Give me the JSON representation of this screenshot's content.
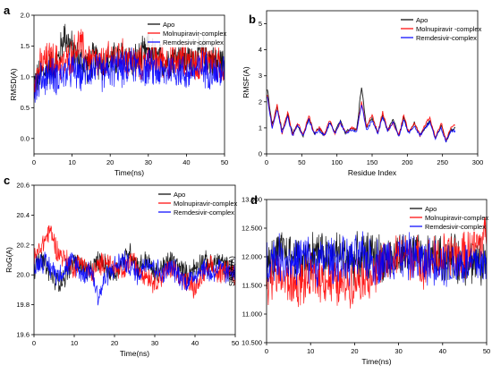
{
  "figure": {
    "colors": {
      "Apo": "#000000",
      "Molnupiravir-complex": "#ff0000",
      "Remdesivir-complex": "#0000ff"
    }
  },
  "chart_data": [
    {
      "panel": "a",
      "type": "line",
      "ylabel": "RMSD(A)",
      "xlabel": "Time(ns)",
      "xlim": [
        0,
        50
      ],
      "ylim": [
        -0.25,
        2.0
      ],
      "xticks": [
        "0",
        "10",
        "20",
        "30",
        "40",
        "50"
      ],
      "yticks": [
        "0.0",
        "0.5",
        "1.0",
        "1.5",
        "2.0"
      ],
      "legend": "top-right",
      "series": [
        {
          "name": "Apo",
          "color": "#000000",
          "x": [
            0,
            2,
            4,
            6,
            8,
            10,
            12,
            14,
            16,
            18,
            20,
            22,
            24,
            26,
            28,
            30,
            32,
            34,
            36,
            38,
            40,
            42,
            44,
            46,
            48,
            50
          ],
          "y": [
            0.9,
            1.05,
            1.15,
            1.2,
            1.7,
            1.45,
            1.25,
            1.2,
            1.3,
            1.2,
            1.25,
            1.3,
            1.35,
            1.25,
            1.3,
            1.45,
            1.3,
            1.25,
            1.3,
            1.35,
            1.25,
            1.3,
            1.4,
            1.3,
            1.25,
            1.2
          ]
        },
        {
          "name": "Molnupiravir-complex",
          "color": "#ff0000",
          "x": [
            0,
            2,
            4,
            6,
            8,
            10,
            12,
            14,
            16,
            18,
            20,
            22,
            24,
            26,
            28,
            30,
            32,
            34,
            36,
            38,
            40,
            42,
            44,
            46,
            48,
            50
          ],
          "y": [
            0.95,
            1.2,
            1.3,
            1.25,
            1.2,
            1.35,
            1.55,
            1.3,
            1.25,
            1.2,
            1.3,
            1.35,
            1.3,
            1.25,
            1.2,
            1.3,
            1.25,
            1.3,
            1.2,
            1.25,
            1.3,
            1.2,
            1.25,
            1.3,
            1.2,
            1.15
          ]
        },
        {
          "name": "Remdesivir-complex",
          "color": "#0000ff",
          "x": [
            0,
            2,
            4,
            6,
            8,
            10,
            12,
            14,
            16,
            18,
            20,
            22,
            24,
            26,
            28,
            30,
            32,
            34,
            36,
            38,
            40,
            42,
            44,
            46,
            48,
            50
          ],
          "y": [
            0.8,
            0.95,
            1.05,
            1.0,
            1.05,
            1.1,
            1.05,
            1.1,
            1.15,
            1.05,
            1.1,
            1.15,
            1.1,
            1.2,
            1.1,
            1.15,
            1.1,
            1.05,
            1.15,
            1.1,
            1.05,
            1.1,
            1.15,
            1.1,
            1.05,
            1.1
          ]
        }
      ]
    },
    {
      "panel": "b",
      "type": "line",
      "ylabel": "RMSF(A)",
      "xlabel": "Residue Index",
      "xlim": [
        0,
        300
      ],
      "ylim": [
        0,
        5.5
      ],
      "xticks": [
        "0",
        "50",
        "100",
        "150",
        "200",
        "250",
        "300"
      ],
      "yticks": [
        "0",
        "1",
        "2",
        "3",
        "4",
        "5"
      ],
      "legend": "top-right",
      "series": [
        {
          "name": "Apo",
          "color": "#000000",
          "x": [
            1,
            8,
            15,
            22,
            30,
            37,
            44,
            52,
            60,
            68,
            75,
            82,
            90,
            97,
            105,
            112,
            120,
            128,
            135,
            142,
            150,
            158,
            165,
            172,
            180,
            188,
            195,
            202,
            210,
            218,
            225,
            232,
            240,
            248,
            255,
            262,
            268
          ],
          "y": [
            2.5,
            1.1,
            1.8,
            0.9,
            1.5,
            0.8,
            1.1,
            0.7,
            1.4,
            0.8,
            1.0,
            0.7,
            1.2,
            0.8,
            1.3,
            0.8,
            1.0,
            0.9,
            2.6,
            1.0,
            1.4,
            0.8,
            1.5,
            0.9,
            1.3,
            0.7,
            1.4,
            0.8,
            1.2,
            0.7,
            1.0,
            1.3,
            0.6,
            1.1,
            0.5,
            0.9,
            1.0
          ]
        },
        {
          "name": "Molnupiravir -complex",
          "color": "#ff0000",
          "x": [
            1,
            8,
            15,
            22,
            30,
            37,
            44,
            52,
            60,
            68,
            75,
            82,
            90,
            97,
            105,
            112,
            120,
            128,
            135,
            142,
            150,
            158,
            165,
            172,
            180,
            188,
            195,
            202,
            210,
            218,
            225,
            232,
            240,
            248,
            255,
            262,
            268
          ],
          "y": [
            2.3,
            1.0,
            1.9,
            0.8,
            1.6,
            0.7,
            1.2,
            0.7,
            1.5,
            0.8,
            1.0,
            0.7,
            1.3,
            0.8,
            1.2,
            0.8,
            1.0,
            0.9,
            2.0,
            1.0,
            1.5,
            0.8,
            1.6,
            0.9,
            1.2,
            0.7,
            1.5,
            0.8,
            1.2,
            0.7,
            1.1,
            1.4,
            0.6,
            1.2,
            0.5,
            1.0,
            1.1
          ]
        },
        {
          "name": "Remdesivir-complex",
          "color": "#0000ff",
          "x": [
            1,
            8,
            15,
            22,
            30,
            37,
            44,
            52,
            60,
            68,
            75,
            82,
            90,
            97,
            105,
            112,
            120,
            128,
            135,
            142,
            150,
            158,
            165,
            172,
            180,
            188,
            195,
            202,
            210,
            218,
            225,
            232,
            240,
            248,
            255,
            262,
            268
          ],
          "y": [
            2.2,
            1.0,
            1.7,
            0.8,
            1.4,
            0.7,
            1.1,
            0.7,
            1.3,
            0.8,
            0.9,
            0.7,
            1.2,
            0.8,
            1.2,
            0.8,
            0.9,
            0.9,
            1.9,
            0.9,
            1.3,
            0.8,
            1.4,
            0.9,
            1.2,
            0.7,
            1.3,
            0.8,
            1.1,
            0.7,
            1.0,
            1.2,
            0.6,
            1.0,
            0.5,
            0.9,
            0.9
          ]
        }
      ]
    },
    {
      "panel": "c",
      "type": "line",
      "ylabel": "RoG(A)",
      "xlabel": "Time(ns)",
      "xlim": [
        0,
        50
      ],
      "ylim": [
        19.6,
        20.6
      ],
      "xticks": [
        "0",
        "10",
        "20",
        "30",
        "40",
        "50"
      ],
      "yticks": [
        "19.6",
        "19.8",
        "20.0",
        "20.2",
        "20.4",
        "20.6"
      ],
      "legend": "top-right",
      "series": [
        {
          "name": "Apo",
          "color": "#000000",
          "x": [
            0,
            2,
            4,
            6,
            8,
            10,
            12,
            14,
            16,
            18,
            20,
            22,
            24,
            26,
            28,
            30,
            32,
            34,
            36,
            38,
            40,
            42,
            44,
            46,
            48,
            50
          ],
          "y": [
            20.05,
            20.1,
            20.0,
            19.95,
            20.0,
            20.1,
            20.05,
            20.0,
            20.1,
            20.05,
            20.0,
            20.1,
            20.15,
            20.05,
            20.1,
            20.0,
            20.05,
            20.1,
            20.05,
            20.0,
            20.05,
            20.1,
            20.05,
            20.1,
            20.05,
            20.0
          ]
        },
        {
          "name": "Molnupiravir-complex",
          "color": "#ff0000",
          "x": [
            0,
            2,
            4,
            6,
            8,
            10,
            12,
            14,
            16,
            18,
            20,
            22,
            24,
            26,
            28,
            30,
            32,
            34,
            36,
            38,
            40,
            42,
            44,
            46,
            48,
            50
          ],
          "y": [
            20.1,
            20.2,
            20.3,
            20.15,
            20.1,
            20.05,
            20.1,
            20.0,
            20.05,
            20.1,
            20.05,
            20.0,
            20.1,
            20.05,
            20.0,
            19.95,
            20.0,
            20.05,
            20.0,
            19.95,
            19.9,
            20.0,
            20.05,
            20.0,
            20.05,
            20.0
          ]
        },
        {
          "name": "Remdesivir-complex",
          "color": "#0000ff",
          "x": [
            0,
            2,
            4,
            6,
            8,
            10,
            12,
            14,
            16,
            18,
            20,
            22,
            24,
            26,
            28,
            30,
            32,
            34,
            36,
            38,
            40,
            42,
            44,
            46,
            48,
            50
          ],
          "y": [
            20.05,
            20.1,
            20.05,
            20.0,
            20.05,
            20.1,
            20.0,
            20.05,
            19.85,
            20.0,
            20.05,
            20.1,
            20.05,
            20.0,
            20.1,
            20.05,
            20.0,
            20.05,
            20.0,
            19.95,
            20.0,
            20.05,
            20.0,
            20.05,
            20.0,
            20.05
          ]
        }
      ]
    },
    {
      "panel": "d",
      "type": "line",
      "ylabel": "SASA(A)",
      "xlabel": "Time(ns)",
      "xlim": [
        0,
        50
      ],
      "ylim": [
        10.5,
        13.0
      ],
      "xticks": [
        "0",
        "10",
        "20",
        "30",
        "40",
        "50"
      ],
      "yticks": [
        "10.500",
        "11.000",
        "11.500",
        "12.000",
        "12.500",
        "13.000"
      ],
      "legend": "top-right",
      "series": [
        {
          "name": "Apo",
          "color": "#000000",
          "x": [
            0,
            2,
            4,
            6,
            8,
            10,
            12,
            14,
            16,
            18,
            20,
            22,
            24,
            26,
            28,
            30,
            32,
            34,
            36,
            38,
            40,
            42,
            44,
            46,
            48,
            50
          ],
          "y": [
            11.8,
            12.0,
            12.1,
            12.0,
            11.95,
            12.05,
            12.1,
            12.0,
            12.05,
            12.0,
            11.95,
            12.0,
            12.05,
            12.0,
            11.95,
            12.0,
            12.05,
            12.0,
            11.9,
            12.0,
            11.95,
            12.0,
            11.9,
            11.95,
            11.9,
            11.85
          ]
        },
        {
          "name": "Molnupiravir-complex",
          "color": "#ff0000",
          "x": [
            0,
            2,
            4,
            6,
            8,
            10,
            12,
            14,
            16,
            18,
            20,
            22,
            24,
            26,
            28,
            30,
            32,
            34,
            36,
            38,
            40,
            42,
            44,
            46,
            48,
            50
          ],
          "y": [
            11.6,
            11.7,
            11.6,
            11.5,
            11.55,
            11.6,
            11.65,
            11.6,
            11.5,
            11.55,
            11.6,
            11.7,
            11.65,
            11.8,
            11.9,
            12.0,
            12.05,
            11.95,
            11.9,
            11.95,
            12.0,
            12.05,
            12.0,
            12.1,
            12.2,
            12.4
          ]
        },
        {
          "name": "Remdesivir-complex",
          "color": "#0000ff",
          "x": [
            0,
            2,
            4,
            6,
            8,
            10,
            12,
            14,
            16,
            18,
            20,
            22,
            24,
            26,
            28,
            30,
            32,
            34,
            36,
            38,
            40,
            42,
            44,
            46,
            48,
            50
          ],
          "y": [
            11.9,
            12.0,
            11.95,
            11.9,
            12.0,
            11.95,
            11.9,
            12.0,
            11.95,
            11.9,
            11.95,
            12.0,
            11.95,
            11.9,
            12.0,
            12.05,
            12.0,
            11.95,
            11.9,
            11.95,
            11.9,
            11.85,
            11.9,
            11.85,
            11.9,
            11.85
          ]
        }
      ]
    }
  ]
}
